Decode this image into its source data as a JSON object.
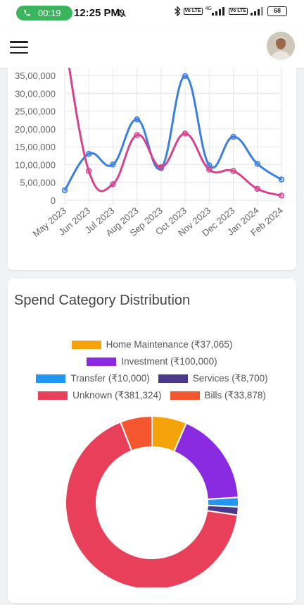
{
  "status_bar": {
    "call_duration": "00:19",
    "time": "12:25 PM",
    "network_4g": "4G",
    "volte_1": "Vo LTE",
    "volte_2": "Vo LTE",
    "battery": "68"
  },
  "header": {
    "menu_icon": "hamburger-menu-icon",
    "avatar": "user-avatar"
  },
  "line_chart": {
    "chart_data": {
      "type": "line",
      "x": [
        "May 2023",
        "Jun 2023",
        "Jul 2023",
        "Aug 2023",
        "Sep 2023",
        "Oct 2023",
        "Nov 2023",
        "Dec 2023",
        "Jan 2024",
        "Feb 2024"
      ],
      "y_ticks": [
        "0",
        "5,00,000",
        "10,00,000",
        "15,00,000",
        "20,00,000",
        "25,00,000",
        "30,00,000",
        "35,00,000"
      ],
      "ylim": [
        0,
        3500000
      ],
      "series": [
        {
          "color": "#3b7fe0",
          "values": [
            280000,
            1300000,
            1000000,
            2270000,
            900000,
            3480000,
            980000,
            1780000,
            1020000,
            580000
          ]
        },
        {
          "color": "#d6428e",
          "values": [
            4500000,
            820000,
            450000,
            1830000,
            930000,
            1870000,
            860000,
            820000,
            320000,
            130000
          ]
        }
      ],
      "grid": true
    }
  },
  "pie_chart": {
    "title": "Spend Category Distribution",
    "chart_data": {
      "type": "pie",
      "labels": [
        "Home Maintenance (₹37,065)",
        "Investment (₹100,000)",
        "Transfer (₹10,000)",
        "Services (₹8,700)",
        "Unknown (₹381,324)",
        "Bills (₹33,878)"
      ],
      "values": [
        37065,
        100000,
        10000,
        8700,
        381324,
        33878
      ],
      "colors": [
        "#f5a30b",
        "#8a2be2",
        "#2196f3",
        "#4b3a8c",
        "#e8405a",
        "#f4572e"
      ],
      "donut": true
    }
  }
}
